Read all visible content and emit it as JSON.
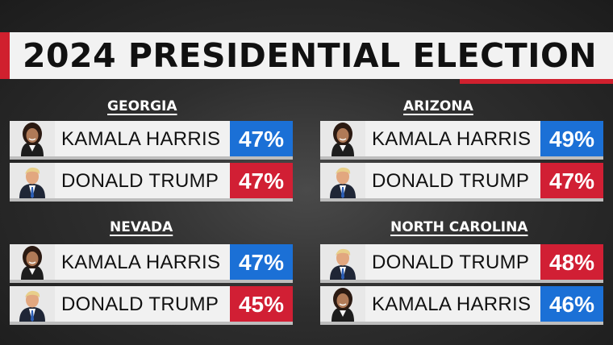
{
  "title": "2024 PRESIDENTIAL ELECTION",
  "colors": {
    "dem": "#1b70d6",
    "rep": "#d11f34",
    "accent": "#d0202e"
  },
  "states": [
    {
      "name": "GEORGIA",
      "rows": [
        {
          "candidate": "KAMALA HARRIS",
          "pct": "47%",
          "party": "dem",
          "icon": "harris-photo-icon"
        },
        {
          "candidate": "DONALD TRUMP",
          "pct": "47%",
          "party": "rep",
          "icon": "trump-photo-icon"
        }
      ]
    },
    {
      "name": "ARIZONA",
      "rows": [
        {
          "candidate": "KAMALA HARRIS",
          "pct": "49%",
          "party": "dem",
          "icon": "harris-photo-icon"
        },
        {
          "candidate": "DONALD TRUMP",
          "pct": "47%",
          "party": "rep",
          "icon": "trump-photo-icon"
        }
      ]
    },
    {
      "name": "NEVADA",
      "rows": [
        {
          "candidate": "KAMALA HARRIS",
          "pct": "47%",
          "party": "dem",
          "icon": "harris-photo-icon"
        },
        {
          "candidate": "DONALD TRUMP",
          "pct": "45%",
          "party": "rep",
          "icon": "trump-photo-icon"
        }
      ]
    },
    {
      "name": "NORTH CAROLINA",
      "rows": [
        {
          "candidate": "DONALD TRUMP",
          "pct": "48%",
          "party": "rep",
          "icon": "trump-photo-icon"
        },
        {
          "candidate": "KAMALA HARRIS",
          "pct": "46%",
          "party": "dem",
          "icon": "harris-photo-icon"
        }
      ]
    }
  ]
}
